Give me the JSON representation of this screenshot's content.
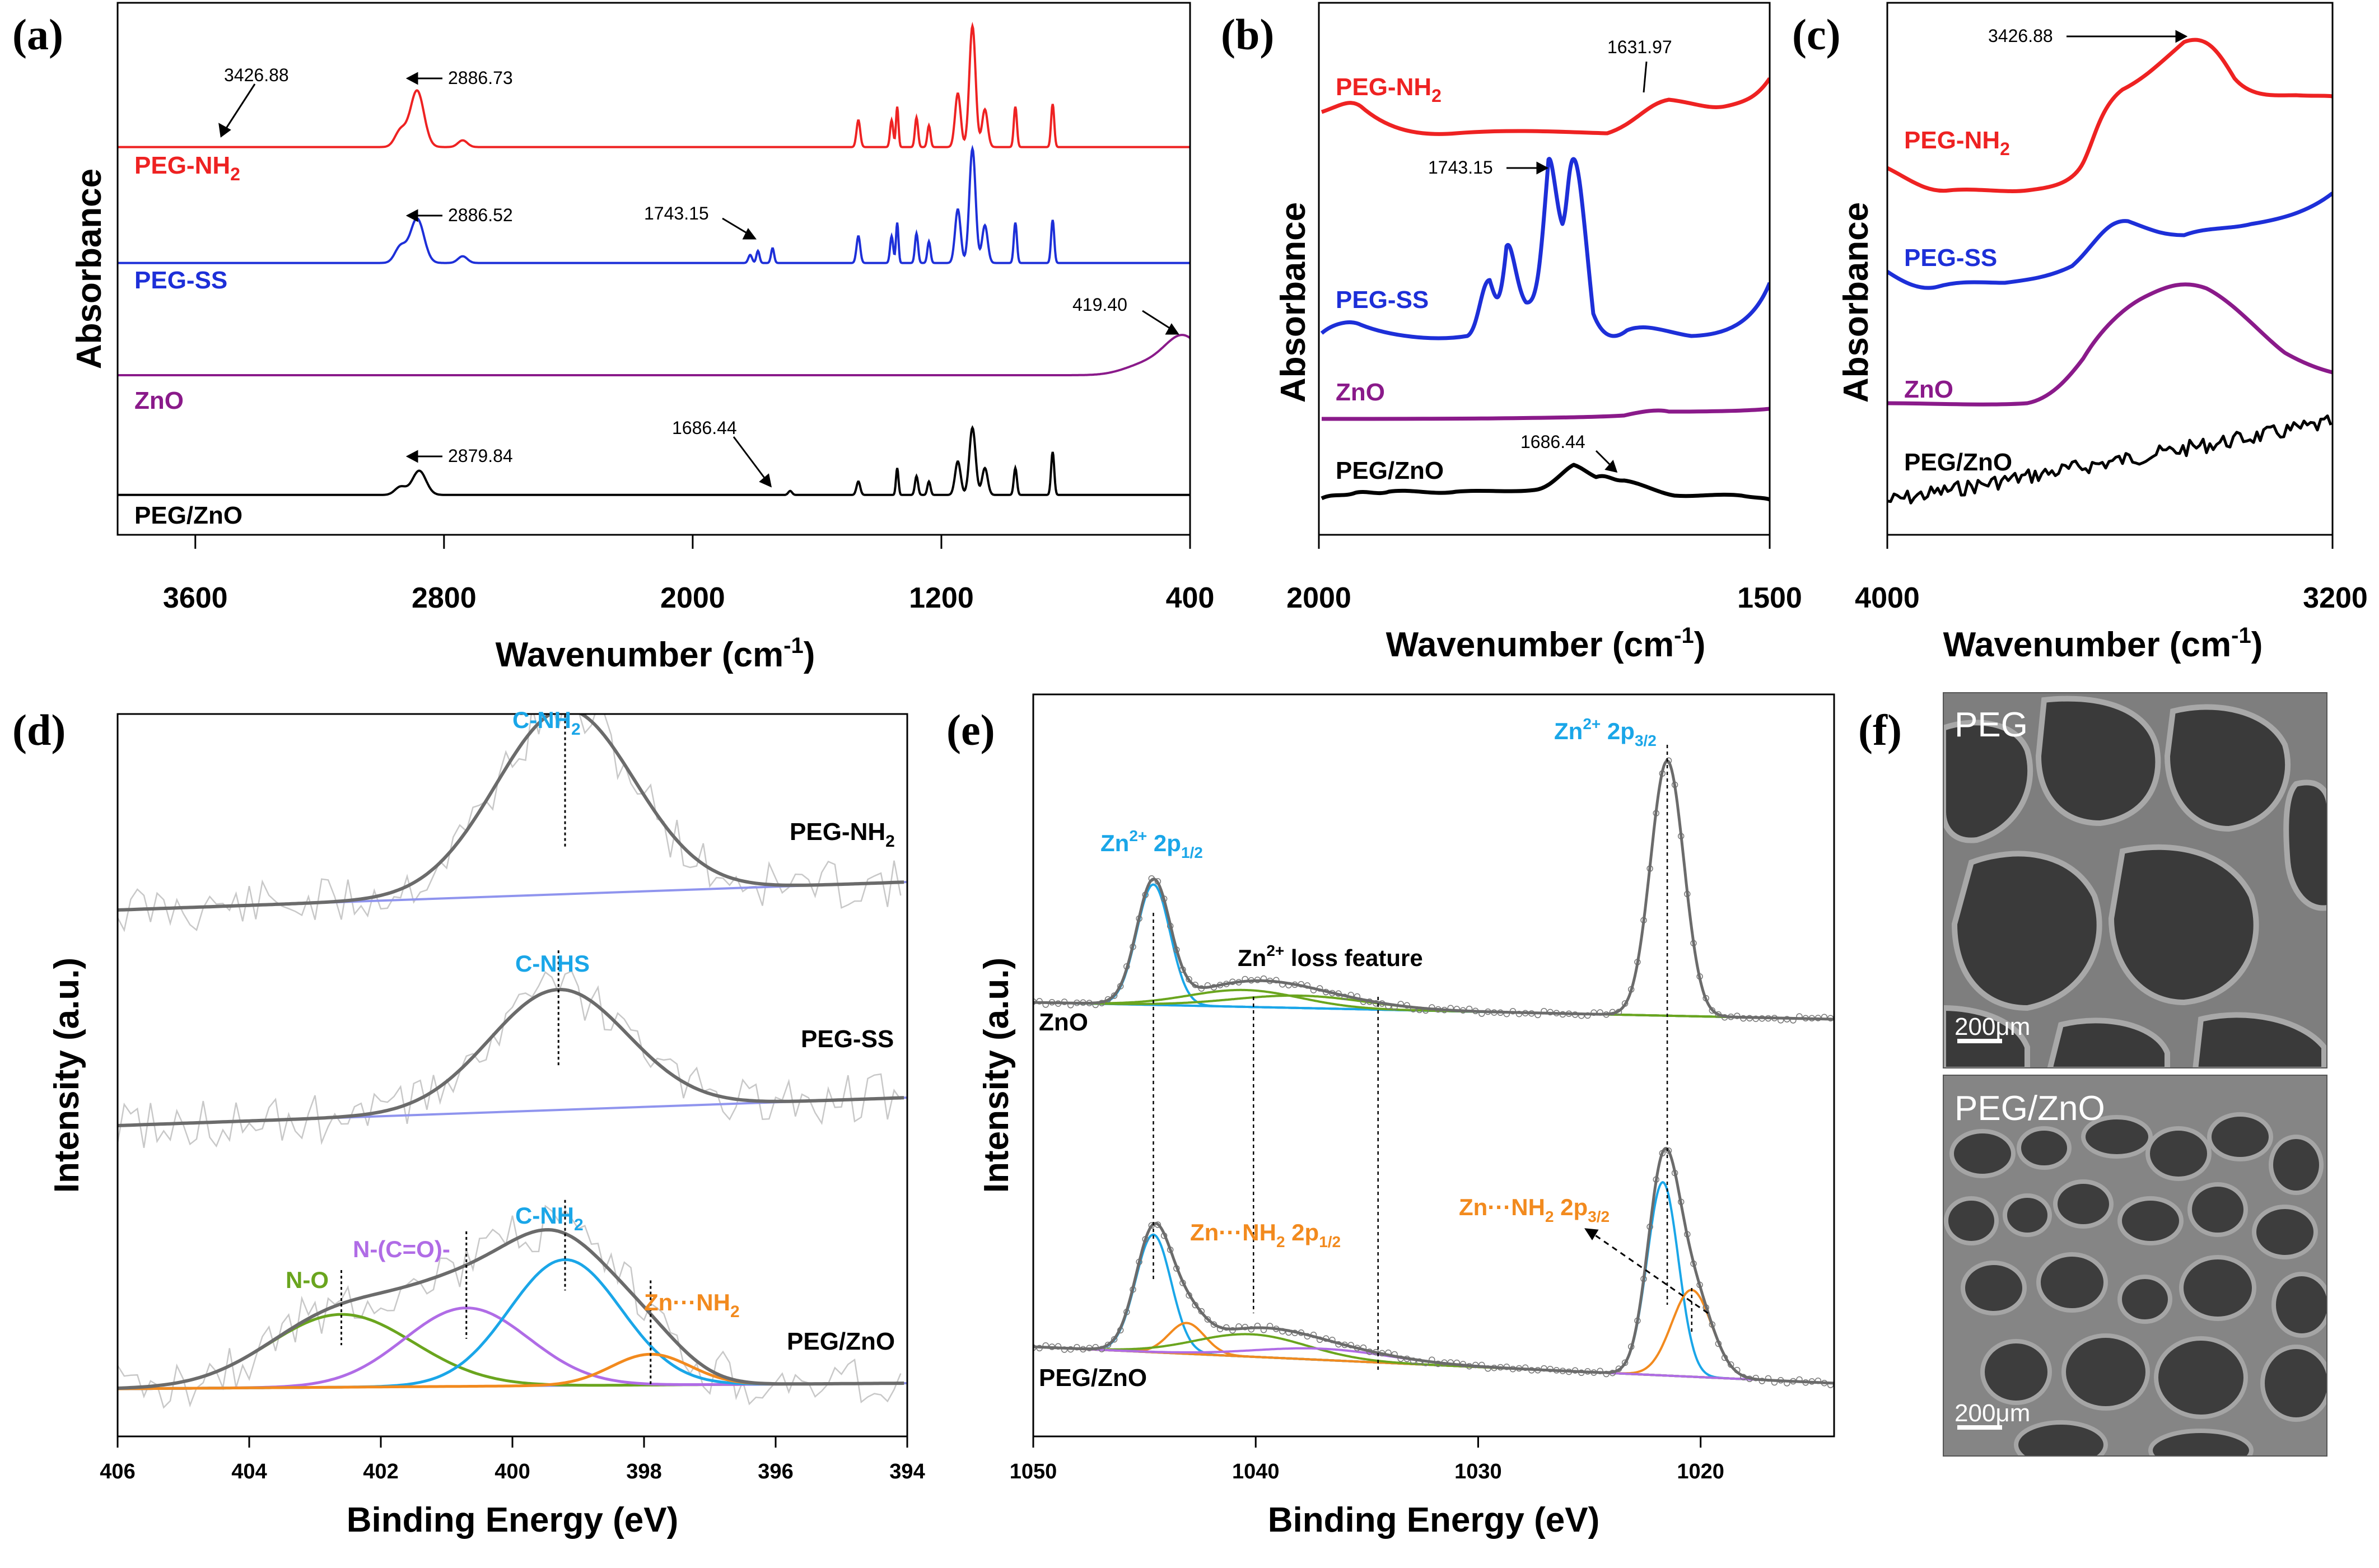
{
  "colors": {
    "peg_nh2": "#ee2222",
    "peg_ss": "#1d2fd8",
    "zno": "#8a1a8a",
    "peg_zno": "#000000",
    "envelope": "#6b6b6b",
    "baseline": "#8f94ee",
    "cyan": "#1aa6e8",
    "orange": "#f28a1e",
    "green": "#6aa51e",
    "purple": "#b06ce6",
    "raw": "#c8c8c8"
  },
  "panel_letters": [
    "(a)",
    "(b)",
    "(c)",
    "(d)",
    "(e)",
    "(f)"
  ],
  "chart_data": [
    {
      "id": "a",
      "type": "line",
      "xlabel": "Wavenumber (cm",
      "xlabel_sup": "-1",
      "xlabel_end": ")",
      "ylabel": "Absorbance",
      "xlim": [
        3850,
        400
      ],
      "x_reversed": true,
      "xticks": [
        "3600",
        "2800",
        "2000",
        "1200",
        "400"
      ],
      "xtick_values": [
        3600,
        2800,
        2000,
        1200,
        400
      ],
      "series": [
        {
          "name": "PEG-NH",
          "sub": "2",
          "color": "#ee2222",
          "offset": 3,
          "baseline": 0.01,
          "peaks": [
            [
              2886.7,
              0.42,
              22
            ],
            [
              2940,
              0.12,
              18
            ],
            [
              2740,
              0.05,
              15
            ],
            [
              1467,
              0.2,
              6
            ],
            [
              1360,
              0.2,
              5
            ],
            [
              1342,
              0.3,
              4
            ],
            [
              1280,
              0.22,
              5
            ],
            [
              1240,
              0.16,
              5
            ],
            [
              1147,
              0.4,
              9
            ],
            [
              1100,
              0.9,
              10
            ],
            [
              1060,
              0.28,
              9
            ],
            [
              962,
              0.3,
              5
            ],
            [
              842,
              0.32,
              5
            ]
          ]
        },
        {
          "name": "PEG-SS",
          "sub": "",
          "color": "#1d2fd8",
          "offset": 2,
          "baseline": 0.01,
          "peaks": [
            [
              2886.5,
              0.33,
              22
            ],
            [
              2940,
              0.12,
              18
            ],
            [
              2740,
              0.05,
              15
            ],
            [
              1815,
              0.06,
              6
            ],
            [
              1790,
              0.09,
              5
            ],
            [
              1743,
              0.11,
              5
            ],
            [
              1467,
              0.2,
              6
            ],
            [
              1360,
              0.2,
              5
            ],
            [
              1342,
              0.3,
              4
            ],
            [
              1280,
              0.22,
              5
            ],
            [
              1240,
              0.16,
              5
            ],
            [
              1147,
              0.4,
              9
            ],
            [
              1100,
              0.85,
              10
            ],
            [
              1060,
              0.28,
              9
            ],
            [
              962,
              0.3,
              5
            ],
            [
              842,
              0.32,
              5
            ]
          ]
        },
        {
          "name": "ZnO",
          "sub": "",
          "color": "#8a1a8a",
          "offset": 1,
          "baseline": 0.0,
          "peaks": [
            [
              419.4,
              0.28,
              60
            ],
            [
              540,
              0.08,
              70
            ]
          ]
        },
        {
          "name": "PEG/ZnO",
          "sub": "",
          "color": "#000000",
          "offset": 0,
          "baseline": 0.005,
          "peaks": [
            [
              2879.8,
              0.18,
              22
            ],
            [
              2940,
              0.06,
              18
            ],
            [
              1686.4,
              0.03,
              6
            ],
            [
              1467,
              0.1,
              6
            ],
            [
              1342,
              0.2,
              4
            ],
            [
              1280,
              0.14,
              5
            ],
            [
              1240,
              0.1,
              5
            ],
            [
              1147,
              0.25,
              9
            ],
            [
              1100,
              0.5,
              10
            ],
            [
              1060,
              0.2,
              9
            ],
            [
              962,
              0.2,
              5
            ],
            [
              842,
              0.32,
              5
            ]
          ]
        }
      ],
      "annotations": [
        "3426.88",
        "2886.73",
        "2886.52",
        "1743.15",
        "419.40",
        "2879.84",
        "1686.44"
      ]
    },
    {
      "id": "b",
      "type": "line",
      "xlabel": "Wavenumber (cm",
      "xlabel_sup": "-1",
      "xlabel_end": ")",
      "ylabel": "Absorbance",
      "xlim": [
        2000,
        1500
      ],
      "x_reversed": true,
      "xticks": [
        "2000",
        "1500"
      ],
      "xtick_values": [
        2000,
        1500
      ],
      "series": [
        {
          "name": "PEG-NH",
          "sub": "2",
          "color": "#ee2222"
        },
        {
          "name": "PEG-SS",
          "sub": "",
          "color": "#1d2fd8"
        },
        {
          "name": "ZnO",
          "sub": "",
          "color": "#8a1a8a"
        },
        {
          "name": "PEG/ZnO",
          "sub": "",
          "color": "#000000"
        }
      ],
      "annotations": [
        "1631.97",
        "1743.15",
        "1686.44"
      ]
    },
    {
      "id": "c",
      "type": "line",
      "xlabel": "Wavenumber (cm",
      "xlabel_sup": "-1",
      "xlabel_end": ")",
      "ylabel": "Absorbance",
      "xlim": [
        4000,
        3200
      ],
      "x_reversed": true,
      "xticks": [
        "4000",
        "3200"
      ],
      "xtick_values": [
        4000,
        3200
      ],
      "series": [
        {
          "name": "PEG-NH",
          "sub": "2",
          "color": "#ee2222"
        },
        {
          "name": "PEG-SS",
          "sub": "",
          "color": "#1d2fd8"
        },
        {
          "name": "ZnO",
          "sub": "",
          "color": "#8a1a8a"
        },
        {
          "name": "PEG/ZnO",
          "sub": "",
          "color": "#000000"
        }
      ],
      "annotations": [
        "3426.88"
      ]
    },
    {
      "id": "d",
      "type": "line",
      "xlabel": "Binding Energy (eV)",
      "ylabel": "Intensity (a.u.)",
      "xlim": [
        406,
        394
      ],
      "x_reversed": true,
      "xticks": [
        "406",
        "404",
        "402",
        "400",
        "398",
        "396",
        "394"
      ],
      "xtick_values": [
        406,
        404,
        402,
        400,
        398,
        396,
        394
      ],
      "spectra": [
        {
          "name": "PEG-NH",
          "sub": "2",
          "components": [
            {
              "label": "C-NH",
              "sub": "2",
              "center": 399.2,
              "color": "#1aa6e8"
            }
          ]
        },
        {
          "name": "PEG-SS",
          "sub": "",
          "components": [
            {
              "label": "C-NHS",
              "sub": "",
              "center": 399.3,
              "color": "#1aa6e8"
            }
          ]
        },
        {
          "name": "PEG/ZnO",
          "sub": "",
          "components": [
            {
              "label": "N-O",
              "sub": "",
              "center": 402.6,
              "color": "#6aa51e"
            },
            {
              "label": "N-(C=O)-",
              "sub": "",
              "center": 400.7,
              "color": "#b06ce6"
            },
            {
              "label": "C-NH",
              "sub": "2",
              "center": 399.2,
              "color": "#1aa6e8"
            },
            {
              "label": "Zn···NH",
              "sub": "2",
              "center": 397.9,
              "color": "#f28a1e"
            }
          ]
        }
      ]
    },
    {
      "id": "e",
      "type": "line",
      "xlabel": "Binding Energy (eV)",
      "ylabel": "Intensity (a.u.)",
      "xlim": [
        1050,
        1014
      ],
      "x_reversed": true,
      "xticks": [
        "1050",
        "1040",
        "1030",
        "1020"
      ],
      "xtick_values": [
        1050,
        1040,
        1030,
        1020
      ],
      "spectra": [
        {
          "name": "ZnO",
          "peaks": [
            1044.6,
            1021.5
          ]
        },
        {
          "name": "PEG/ZnO",
          "peaks": [
            1044.6,
            1043.2,
            1040.1,
            1021.7,
            1020.4
          ]
        }
      ],
      "labels": {
        "zn_p12": {
          "base": "Zn",
          "sup": "2+",
          "mid": " 2p",
          "sub": "1/2"
        },
        "zn_p32": {
          "base": "Zn",
          "sup": "2+",
          "mid": " 2p",
          "sub": "3/2"
        },
        "loss": {
          "base": "Zn",
          "sup": "2+",
          "mid": " loss feature"
        },
        "znnh_p12": {
          "base": "Zn···NH",
          "sub1": "2",
          "mid": " 2p",
          "sub": "1/2"
        },
        "znnh_p32": {
          "base": "Zn···NH",
          "sub1": "2",
          "mid": " 2p",
          "sub": "3/2"
        }
      }
    }
  ],
  "sem": {
    "top_label": "PEG",
    "bottom_label": "PEG/ZnO",
    "scale_top": "200μm",
    "scale_bottom": "200μm"
  }
}
